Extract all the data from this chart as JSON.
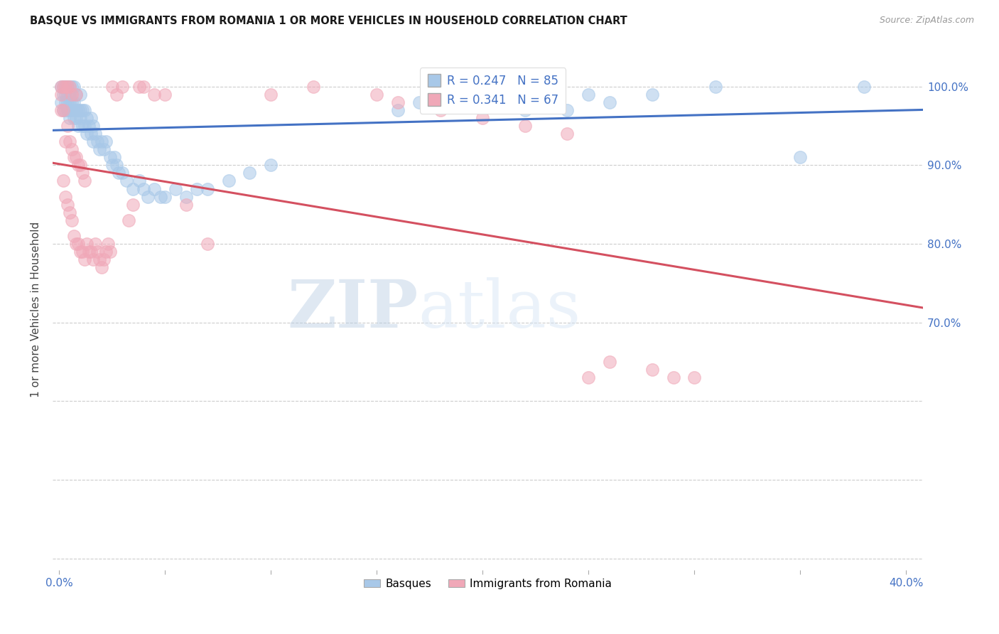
{
  "title": "BASQUE VS IMMIGRANTS FROM ROMANIA 1 OR MORE VEHICLES IN HOUSEHOLD CORRELATION CHART",
  "source": "Source: ZipAtlas.com",
  "ylabel": "1 or more Vehicles in Household",
  "xlim_min": -0.003,
  "xlim_max": 0.408,
  "ylim_min": 0.385,
  "ylim_max": 1.048,
  "xtick_positions": [
    0.0,
    0.05,
    0.1,
    0.15,
    0.2,
    0.25,
    0.3,
    0.35,
    0.4
  ],
  "xticklabels": [
    "0.0%",
    "",
    "",
    "",
    "",
    "",
    "",
    "",
    "40.0%"
  ],
  "ytick_positions": [
    0.4,
    0.5,
    0.6,
    0.7,
    0.8,
    0.9,
    1.0
  ],
  "yticklabels_right": [
    "",
    "",
    "",
    "70.0%",
    "80.0%",
    "90.0%",
    "100.0%"
  ],
  "basque_color": "#a8c8e8",
  "romania_color": "#f0a8b8",
  "blue_line_color": "#4472c4",
  "red_line_color": "#d45060",
  "legend_text_color": "#4472c4",
  "legend_line1": "R = 0.247   N = 85",
  "legend_line2": "R = 0.341   N = 67",
  "watermark_zip": "ZIP",
  "watermark_atlas": "atlas",
  "watermark_color": "#c8dcf0",
  "basque_x": [
    0.001,
    0.001,
    0.002,
    0.002,
    0.002,
    0.003,
    0.003,
    0.003,
    0.003,
    0.004,
    0.004,
    0.004,
    0.004,
    0.005,
    0.005,
    0.005,
    0.005,
    0.005,
    0.006,
    0.006,
    0.006,
    0.007,
    0.007,
    0.007,
    0.008,
    0.008,
    0.008,
    0.009,
    0.009,
    0.01,
    0.01,
    0.01,
    0.011,
    0.011,
    0.012,
    0.012,
    0.013,
    0.013,
    0.014,
    0.015,
    0.015,
    0.016,
    0.016,
    0.017,
    0.018,
    0.019,
    0.02,
    0.021,
    0.022,
    0.024,
    0.025,
    0.026,
    0.027,
    0.028,
    0.03,
    0.032,
    0.035,
    0.038,
    0.04,
    0.042,
    0.045,
    0.048,
    0.05,
    0.055,
    0.06,
    0.065,
    0.07,
    0.08,
    0.09,
    0.1,
    0.16,
    0.17,
    0.18,
    0.19,
    0.2,
    0.21,
    0.22,
    0.23,
    0.24,
    0.25,
    0.26,
    0.28,
    0.31,
    0.35,
    0.38
  ],
  "basque_y": [
    0.98,
    1.0,
    0.97,
    0.99,
    1.0,
    0.97,
    0.99,
    1.0,
    0.98,
    0.97,
    0.98,
    0.99,
    1.0,
    0.96,
    0.97,
    0.98,
    0.99,
    1.0,
    0.97,
    0.98,
    1.0,
    0.96,
    0.98,
    1.0,
    0.96,
    0.97,
    0.99,
    0.95,
    0.97,
    0.96,
    0.97,
    0.99,
    0.95,
    0.97,
    0.95,
    0.97,
    0.94,
    0.96,
    0.95,
    0.94,
    0.96,
    0.93,
    0.95,
    0.94,
    0.93,
    0.92,
    0.93,
    0.92,
    0.93,
    0.91,
    0.9,
    0.91,
    0.9,
    0.89,
    0.89,
    0.88,
    0.87,
    0.88,
    0.87,
    0.86,
    0.87,
    0.86,
    0.86,
    0.87,
    0.86,
    0.87,
    0.87,
    0.88,
    0.89,
    0.9,
    0.97,
    0.98,
    0.99,
    1.0,
    0.99,
    0.98,
    0.97,
    0.98,
    0.97,
    0.99,
    0.98,
    0.99,
    1.0,
    0.91,
    1.0
  ],
  "romania_x": [
    0.001,
    0.001,
    0.001,
    0.002,
    0.002,
    0.002,
    0.003,
    0.003,
    0.003,
    0.004,
    0.004,
    0.004,
    0.005,
    0.005,
    0.005,
    0.006,
    0.006,
    0.006,
    0.007,
    0.007,
    0.008,
    0.008,
    0.008,
    0.009,
    0.009,
    0.01,
    0.01,
    0.011,
    0.011,
    0.012,
    0.012,
    0.013,
    0.014,
    0.015,
    0.016,
    0.017,
    0.018,
    0.019,
    0.02,
    0.021,
    0.022,
    0.023,
    0.024,
    0.025,
    0.027,
    0.03,
    0.033,
    0.035,
    0.038,
    0.04,
    0.045,
    0.05,
    0.06,
    0.07,
    0.1,
    0.12,
    0.15,
    0.16,
    0.18,
    0.2,
    0.22,
    0.24,
    0.25,
    0.26,
    0.28,
    0.29,
    0.3
  ],
  "romania_y": [
    0.97,
    0.99,
    1.0,
    0.88,
    0.97,
    1.0,
    0.86,
    0.93,
    1.0,
    0.85,
    0.95,
    1.0,
    0.84,
    0.93,
    1.0,
    0.83,
    0.92,
    0.99,
    0.81,
    0.91,
    0.8,
    0.91,
    0.99,
    0.8,
    0.9,
    0.79,
    0.9,
    0.79,
    0.89,
    0.78,
    0.88,
    0.8,
    0.79,
    0.79,
    0.78,
    0.8,
    0.79,
    0.78,
    0.77,
    0.78,
    0.79,
    0.8,
    0.79,
    1.0,
    0.99,
    1.0,
    0.83,
    0.85,
    1.0,
    1.0,
    0.99,
    0.99,
    0.85,
    0.8,
    0.99,
    1.0,
    0.99,
    0.98,
    0.97,
    0.96,
    0.95,
    0.94,
    0.63,
    0.65,
    0.64,
    0.63,
    0.63
  ]
}
